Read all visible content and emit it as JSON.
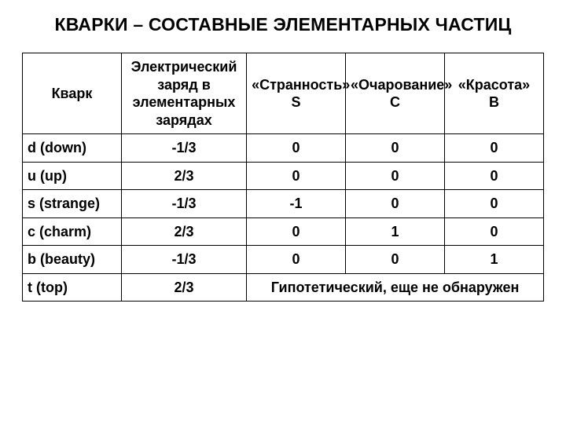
{
  "title": "КВАРКИ – СОСТАВНЫЕ ЭЛЕМЕНТАРНЫХ ЧАСТИЦ",
  "table": {
    "type": "table",
    "border_color": "#000000",
    "background_color": "#ffffff",
    "text_color": "#000000",
    "header_fontsize": 18,
    "cell_fontsize": 18,
    "font_weight": "bold",
    "columns": [
      {
        "key": "quark",
        "label": "Кварк",
        "width_pct": 19,
        "align": "left"
      },
      {
        "key": "charge",
        "label": "Электрический заряд в элементарных зарядах",
        "width_pct": 24,
        "align": "center"
      },
      {
        "key": "s",
        "label": "«Странность»\nS",
        "width_pct": 19,
        "align": "center"
      },
      {
        "key": "c",
        "label": "«Очарование»\nС",
        "width_pct": 19,
        "align": "center"
      },
      {
        "key": "b",
        "label": "«Красота»\nВ",
        "width_pct": 19,
        "align": "center"
      }
    ],
    "rows": [
      {
        "quark": "d (down)",
        "charge": "-1/3",
        "s": "0",
        "c": "0",
        "b": "0"
      },
      {
        "quark": "u (up)",
        "charge": "2/3",
        "s": "0",
        "c": "0",
        "b": "0"
      },
      {
        "quark": "s (strange)",
        "charge": "-1/3",
        "s": "-1",
        "c": "0",
        "b": "0"
      },
      {
        "quark": "c (charm)",
        "charge": "2/3",
        "s": "0",
        "c": "1",
        "b": "0"
      },
      {
        "quark": "b (beauty)",
        "charge": "-1/3",
        "s": "0",
        "c": "0",
        "b": "1"
      },
      {
        "quark": "t (top)",
        "charge": "2/3",
        "note": "Гипотетический, еще не обнаружен"
      }
    ]
  }
}
